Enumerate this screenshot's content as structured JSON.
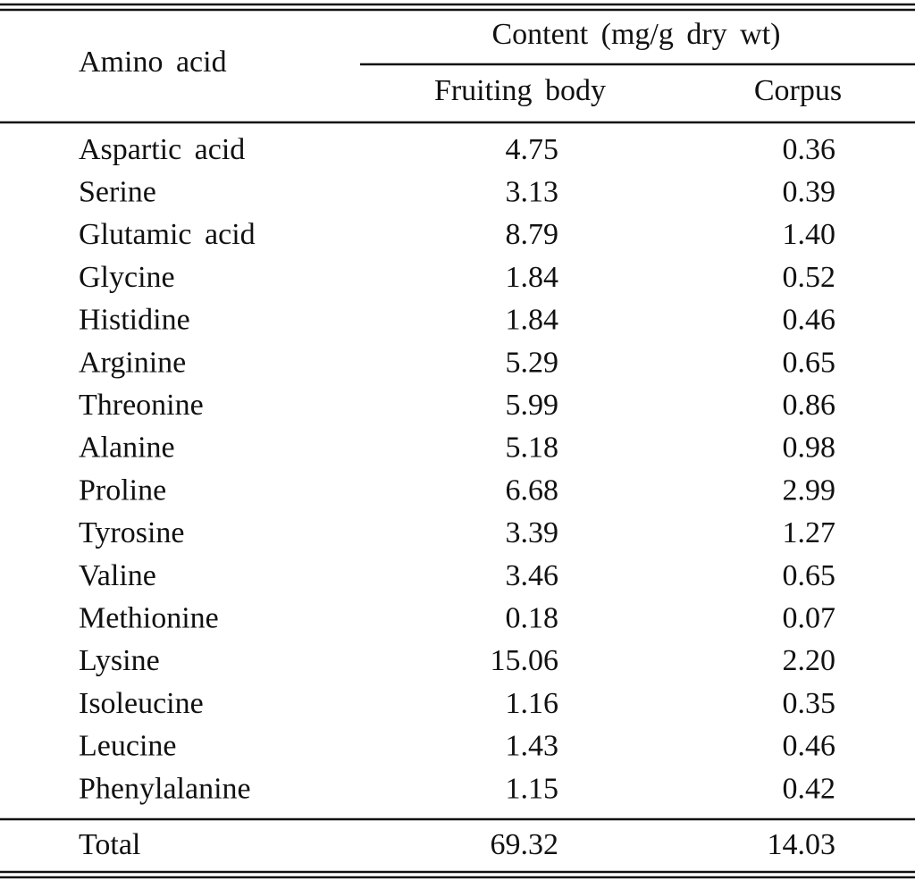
{
  "header": {
    "row_label": "Amino acid",
    "group": "Content (mg/g dry wt)",
    "columns": [
      "Fruiting body",
      "Corpus"
    ]
  },
  "table": {
    "rows": [
      [
        "Aspartic acid",
        "4.75",
        "0.36"
      ],
      [
        "Serine",
        "3.13",
        "0.39"
      ],
      [
        "Glutamic acid",
        "8.79",
        "1.40"
      ],
      [
        "Glycine",
        "1.84",
        "0.52"
      ],
      [
        "Histidine",
        "1.84",
        "0.46"
      ],
      [
        "Arginine",
        "5.29",
        "0.65"
      ],
      [
        "Threonine",
        "5.99",
        "0.86"
      ],
      [
        "Alanine",
        "5.18",
        "0.98"
      ],
      [
        "Proline",
        "6.68",
        "2.99"
      ],
      [
        "Tyrosine",
        "3.39",
        "1.27"
      ],
      [
        "Valine",
        "3.46",
        "0.65"
      ],
      [
        "Methionine",
        "0.18",
        "0.07"
      ],
      [
        "Lysine",
        "15.06",
        "2.20"
      ],
      [
        "Isoleucine",
        "1.16",
        "0.35"
      ],
      [
        "Leucine",
        "1.43",
        "0.46"
      ],
      [
        "Phenylalanine",
        "1.15",
        "0.42"
      ]
    ]
  },
  "total": [
    "Total",
    "69.32",
    "14.03"
  ]
}
